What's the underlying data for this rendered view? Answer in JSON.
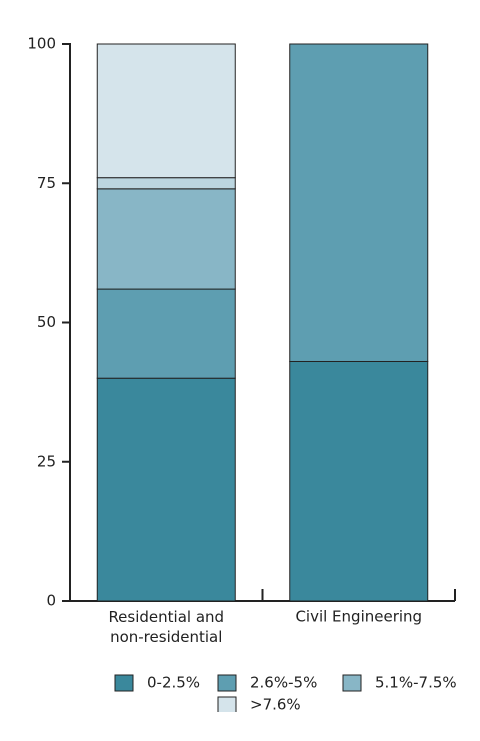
{
  "chart_data": {
    "type": "stacked-bar",
    "categories": [
      "Residential and non-residential",
      "Civil Engineering"
    ],
    "series": [
      {
        "name": "0-2.5%",
        "color": "#3a889c",
        "values": [
          40,
          43
        ]
      },
      {
        "name": "2.6%-5%",
        "color": "#5e9eb1",
        "values": [
          16,
          57
        ]
      },
      {
        "name": "5.1%-7.5%",
        "color": "#88b6c6",
        "values": [
          18,
          0
        ]
      },
      {
        "color": "#bcd6e0",
        "values": [
          2,
          0
        ]
      },
      {
        "name": ">7.6%",
        "color": "#d5e4eb",
        "values": [
          24,
          0
        ]
      }
    ],
    "ylim": [
      0,
      100
    ],
    "yticks": [
      0,
      25,
      50,
      75,
      100
    ],
    "grid": false
  }
}
